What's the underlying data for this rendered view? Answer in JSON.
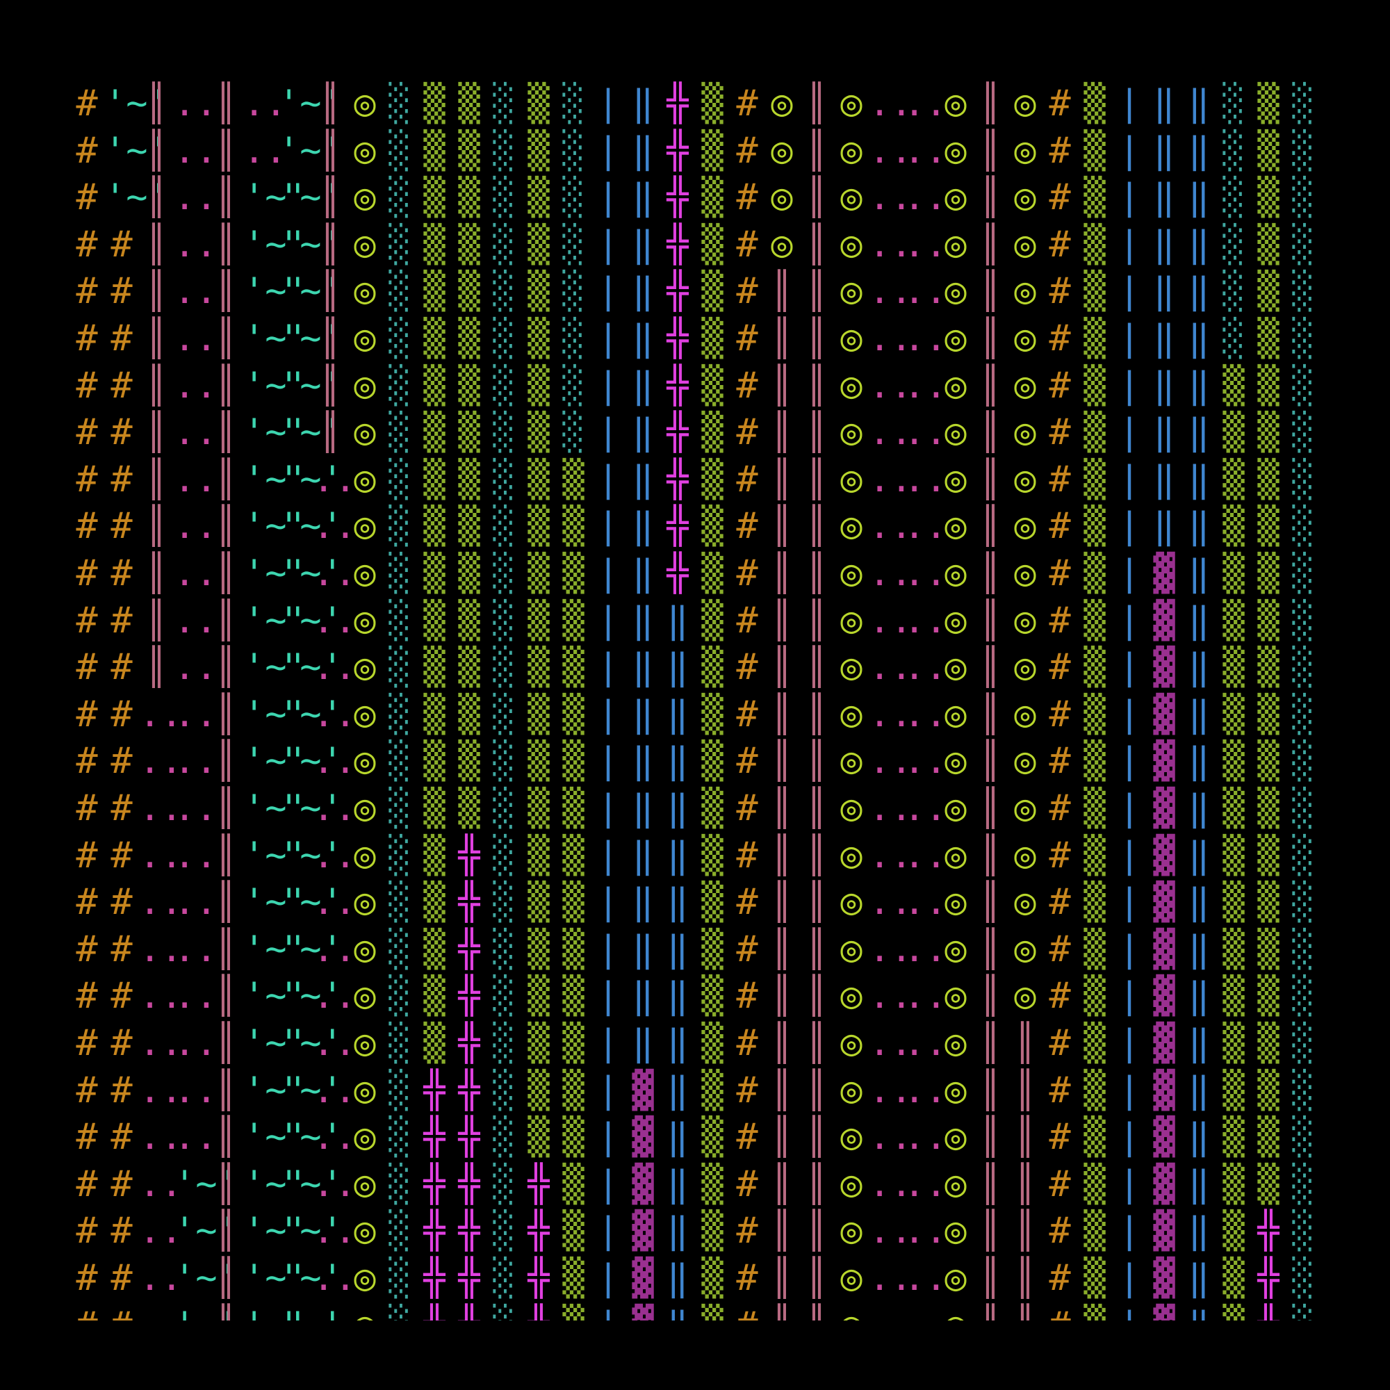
{
  "grid": {
    "palette": {
      "#": "#c8861e",
      "'~'": "#3dd6b0",
      "║": "#b86a82",
      "..": "#c8489e",
      "◎": "#b8d62c",
      "░": "#3fa8a0",
      "▒": "#8aae2a",
      "╬": "#e040e0",
      "▓": "#9a3090",
      "|": "#3f86d0",
      "‖": "#3f86d0"
    },
    "rows": [
      [
        "#",
        "'~'",
        "║",
        "..",
        "║",
        "..",
        "'~'",
        "║",
        "◎",
        "░",
        "▒",
        "▒",
        "░",
        "▒",
        "░",
        "|",
        "‖",
        "╬",
        "▒",
        "#",
        "◎",
        "║",
        "◎",
        "..",
        "..",
        "◎",
        "║",
        "◎",
        "#",
        "▒",
        "|",
        "‖",
        "‖",
        "░",
        "▒",
        "░"
      ],
      [
        "#",
        "'~'",
        "║",
        "..",
        "║",
        "..",
        "'~'",
        "║",
        "◎",
        "░",
        "▒",
        "▒",
        "░",
        "▒",
        "░",
        "|",
        "‖",
        "╬",
        "▒",
        "#",
        "◎",
        "║",
        "◎",
        "..",
        "..",
        "◎",
        "║",
        "◎",
        "#",
        "▒",
        "|",
        "‖",
        "‖",
        "░",
        "▒",
        "░"
      ],
      [
        "#",
        "'~'",
        "║",
        "..",
        "║",
        "'~'",
        "'~'",
        "║",
        "◎",
        "░",
        "▒",
        "▒",
        "░",
        "▒",
        "░",
        "|",
        "‖",
        "╬",
        "▒",
        "#",
        "◎",
        "║",
        "◎",
        "..",
        "..",
        "◎",
        "║",
        "◎",
        "#",
        "▒",
        "|",
        "‖",
        "‖",
        "░",
        "▒",
        "░"
      ],
      [
        "#",
        "#",
        "║",
        "..",
        "║",
        "'~'",
        "'~'",
        "║",
        "◎",
        "░",
        "▒",
        "▒",
        "░",
        "▒",
        "░",
        "|",
        "‖",
        "╬",
        "▒",
        "#",
        "◎",
        "║",
        "◎",
        "..",
        "..",
        "◎",
        "║",
        "◎",
        "#",
        "▒",
        "|",
        "‖",
        "‖",
        "░",
        "▒",
        "░"
      ],
      [
        "#",
        "#",
        "║",
        "..",
        "║",
        "'~'",
        "'~'",
        "║",
        "◎",
        "░",
        "▒",
        "▒",
        "░",
        "▒",
        "░",
        "|",
        "‖",
        "╬",
        "▒",
        "#",
        "║",
        "║",
        "◎",
        "..",
        "..",
        "◎",
        "║",
        "◎",
        "#",
        "▒",
        "|",
        "‖",
        "‖",
        "░",
        "▒",
        "░"
      ],
      [
        "#",
        "#",
        "║",
        "..",
        "║",
        "'~'",
        "'~'",
        "║",
        "◎",
        "░",
        "▒",
        "▒",
        "░",
        "▒",
        "░",
        "|",
        "‖",
        "╬",
        "▒",
        "#",
        "║",
        "║",
        "◎",
        "..",
        "..",
        "◎",
        "║",
        "◎",
        "#",
        "▒",
        "|",
        "‖",
        "‖",
        "░",
        "▒",
        "░"
      ],
      [
        "#",
        "#",
        "║",
        "..",
        "║",
        "'~'",
        "'~'",
        "║",
        "◎",
        "░",
        "▒",
        "▒",
        "░",
        "▒",
        "░",
        "|",
        "‖",
        "╬",
        "▒",
        "#",
        "║",
        "║",
        "◎",
        "..",
        "..",
        "◎",
        "║",
        "◎",
        "#",
        "▒",
        "|",
        "‖",
        "‖",
        "▒",
        "▒",
        "░"
      ],
      [
        "#",
        "#",
        "║",
        "..",
        "║",
        "'~'",
        "'~'",
        "║",
        "◎",
        "░",
        "▒",
        "▒",
        "░",
        "▒",
        "░",
        "|",
        "‖",
        "╬",
        "▒",
        "#",
        "║",
        "║",
        "◎",
        "..",
        "..",
        "◎",
        "║",
        "◎",
        "#",
        "▒",
        "|",
        "‖",
        "‖",
        "▒",
        "▒",
        "░"
      ],
      [
        "#",
        "#",
        "║",
        "..",
        "║",
        "'~'",
        "'~'",
        "..",
        "◎",
        "░",
        "▒",
        "▒",
        "░",
        "▒",
        "▒",
        "|",
        "‖",
        "╬",
        "▒",
        "#",
        "║",
        "║",
        "◎",
        "..",
        "..",
        "◎",
        "║",
        "◎",
        "#",
        "▒",
        "|",
        "‖",
        "‖",
        "▒",
        "▒",
        "░"
      ],
      [
        "#",
        "#",
        "║",
        "..",
        "║",
        "'~'",
        "'~'",
        "..",
        "◎",
        "░",
        "▒",
        "▒",
        "░",
        "▒",
        "▒",
        "|",
        "‖",
        "╬",
        "▒",
        "#",
        "║",
        "║",
        "◎",
        "..",
        "..",
        "◎",
        "║",
        "◎",
        "#",
        "▒",
        "|",
        "‖",
        "‖",
        "▒",
        "▒",
        "░"
      ],
      [
        "#",
        "#",
        "║",
        "..",
        "║",
        "'~'",
        "'~'",
        "..",
        "◎",
        "░",
        "▒",
        "▒",
        "░",
        "▒",
        "▒",
        "|",
        "‖",
        "╬",
        "▒",
        "#",
        "║",
        "║",
        "◎",
        "..",
        "..",
        "◎",
        "║",
        "◎",
        "#",
        "▒",
        "|",
        "▓",
        "‖",
        "▒",
        "▒",
        "░"
      ],
      [
        "#",
        "#",
        "║",
        "..",
        "║",
        "'~'",
        "'~'",
        "..",
        "◎",
        "░",
        "▒",
        "▒",
        "░",
        "▒",
        "▒",
        "|",
        "‖",
        "‖",
        "▒",
        "#",
        "║",
        "║",
        "◎",
        "..",
        "..",
        "◎",
        "║",
        "◎",
        "#",
        "▒",
        "|",
        "▓",
        "‖",
        "▒",
        "▒",
        "░"
      ],
      [
        "#",
        "#",
        "║",
        "..",
        "║",
        "'~'",
        "'~'",
        "..",
        "◎",
        "░",
        "▒",
        "▒",
        "░",
        "▒",
        "▒",
        "|",
        "‖",
        "‖",
        "▒",
        "#",
        "║",
        "║",
        "◎",
        "..",
        "..",
        "◎",
        "║",
        "◎",
        "#",
        "▒",
        "|",
        "▓",
        "‖",
        "▒",
        "▒",
        "░"
      ],
      [
        "#",
        "#",
        "..",
        "..",
        "║",
        "'~'",
        "'~'",
        "..",
        "◎",
        "░",
        "▒",
        "▒",
        "░",
        "▒",
        "▒",
        "|",
        "‖",
        "‖",
        "▒",
        "#",
        "║",
        "║",
        "◎",
        "..",
        "..",
        "◎",
        "║",
        "◎",
        "#",
        "▒",
        "|",
        "▓",
        "‖",
        "▒",
        "▒",
        "░"
      ],
      [
        "#",
        "#",
        "..",
        "..",
        "║",
        "'~'",
        "'~'",
        "..",
        "◎",
        "░",
        "▒",
        "▒",
        "░",
        "▒",
        "▒",
        "|",
        "‖",
        "‖",
        "▒",
        "#",
        "║",
        "║",
        "◎",
        "..",
        "..",
        "◎",
        "║",
        "◎",
        "#",
        "▒",
        "|",
        "▓",
        "‖",
        "▒",
        "▒",
        "░"
      ],
      [
        "#",
        "#",
        "..",
        "..",
        "║",
        "'~'",
        "'~'",
        "..",
        "◎",
        "░",
        "▒",
        "▒",
        "░",
        "▒",
        "▒",
        "|",
        "‖",
        "‖",
        "▒",
        "#",
        "║",
        "║",
        "◎",
        "..",
        "..",
        "◎",
        "║",
        "◎",
        "#",
        "▒",
        "|",
        "▓",
        "‖",
        "▒",
        "▒",
        "░"
      ],
      [
        "#",
        "#",
        "..",
        "..",
        "║",
        "'~'",
        "'~'",
        "..",
        "◎",
        "░",
        "▒",
        "╬",
        "░",
        "▒",
        "▒",
        "|",
        "‖",
        "‖",
        "▒",
        "#",
        "║",
        "║",
        "◎",
        "..",
        "..",
        "◎",
        "║",
        "◎",
        "#",
        "▒",
        "|",
        "▓",
        "‖",
        "▒",
        "▒",
        "░"
      ],
      [
        "#",
        "#",
        "..",
        "..",
        "║",
        "'~'",
        "'~'",
        "..",
        "◎",
        "░",
        "▒",
        "╬",
        "░",
        "▒",
        "▒",
        "|",
        "‖",
        "‖",
        "▒",
        "#",
        "║",
        "║",
        "◎",
        "..",
        "..",
        "◎",
        "║",
        "◎",
        "#",
        "▒",
        "|",
        "▓",
        "‖",
        "▒",
        "▒",
        "░"
      ],
      [
        "#",
        "#",
        "..",
        "..",
        "║",
        "'~'",
        "'~'",
        "..",
        "◎",
        "░",
        "▒",
        "╬",
        "░",
        "▒",
        "▒",
        "|",
        "‖",
        "‖",
        "▒",
        "#",
        "║",
        "║",
        "◎",
        "..",
        "..",
        "◎",
        "║",
        "◎",
        "#",
        "▒",
        "|",
        "▓",
        "‖",
        "▒",
        "▒",
        "░"
      ],
      [
        "#",
        "#",
        "..",
        "..",
        "║",
        "'~'",
        "'~'",
        "..",
        "◎",
        "░",
        "▒",
        "╬",
        "░",
        "▒",
        "▒",
        "|",
        "‖",
        "‖",
        "▒",
        "#",
        "║",
        "║",
        "◎",
        "..",
        "..",
        "◎",
        "║",
        "◎",
        "#",
        "▒",
        "|",
        "▓",
        "‖",
        "▒",
        "▒",
        "░"
      ],
      [
        "#",
        "#",
        "..",
        "..",
        "║",
        "'~'",
        "'~'",
        "..",
        "◎",
        "░",
        "▒",
        "╬",
        "░",
        "▒",
        "▒",
        "|",
        "‖",
        "‖",
        "▒",
        "#",
        "║",
        "║",
        "◎",
        "..",
        "..",
        "◎",
        "║",
        "║",
        "#",
        "▒",
        "|",
        "▓",
        "‖",
        "▒",
        "▒",
        "░"
      ],
      [
        "#",
        "#",
        "..",
        "..",
        "║",
        "'~'",
        "'~'",
        "..",
        "◎",
        "░",
        "╬",
        "╬",
        "░",
        "▒",
        "▒",
        "|",
        "▓",
        "‖",
        "▒",
        "#",
        "║",
        "║",
        "◎",
        "..",
        "..",
        "◎",
        "║",
        "║",
        "#",
        "▒",
        "|",
        "▓",
        "‖",
        "▒",
        "▒",
        "░"
      ],
      [
        "#",
        "#",
        "..",
        "..",
        "║",
        "'~'",
        "'~'",
        "..",
        "◎",
        "░",
        "╬",
        "╬",
        "░",
        "▒",
        "▒",
        "|",
        "▓",
        "‖",
        "▒",
        "#",
        "║",
        "║",
        "◎",
        "..",
        "..",
        "◎",
        "║",
        "║",
        "#",
        "▒",
        "|",
        "▓",
        "‖",
        "▒",
        "▒",
        "░"
      ],
      [
        "#",
        "#",
        "..",
        "'~'",
        "║",
        "'~'",
        "'~'",
        "..",
        "◎",
        "░",
        "╬",
        "╬",
        "░",
        "╬",
        "▒",
        "|",
        "▓",
        "‖",
        "▒",
        "#",
        "║",
        "║",
        "◎",
        "..",
        "..",
        "◎",
        "║",
        "║",
        "#",
        "▒",
        "|",
        "▓",
        "‖",
        "▒",
        "▒",
        "░"
      ],
      [
        "#",
        "#",
        "..",
        "'~'",
        "║",
        "'~'",
        "'~'",
        "..",
        "◎",
        "░",
        "╬",
        "╬",
        "░",
        "╬",
        "▒",
        "|",
        "▓",
        "‖",
        "▒",
        "#",
        "║",
        "║",
        "◎",
        "..",
        "..",
        "◎",
        "║",
        "║",
        "#",
        "▒",
        "|",
        "▓",
        "‖",
        "▒",
        "╬",
        "░"
      ],
      [
        "#",
        "#",
        "..",
        "'~'",
        "║",
        "'~'",
        "'~'",
        "..",
        "◎",
        "░",
        "╬",
        "╬",
        "░",
        "╬",
        "▒",
        "|",
        "▓",
        "‖",
        "▒",
        "#",
        "║",
        "║",
        "◎",
        "..",
        "..",
        "◎",
        "║",
        "║",
        "#",
        "▒",
        "|",
        "▓",
        "‖",
        "▒",
        "╬",
        "░"
      ],
      [
        "#",
        "#",
        "..",
        "'~'",
        "║",
        "'~'",
        "'~'",
        "..",
        "◎",
        "░",
        "╬",
        "╬",
        "░",
        "╬",
        "▒",
        "|",
        "▓",
        "‖",
        "▒",
        "#",
        "║",
        "║",
        "◎",
        "..",
        "..",
        "◎",
        "║",
        "║",
        "#",
        "▒",
        "|",
        "▓",
        "‖",
        "▒",
        "╬",
        "░"
      ]
    ]
  }
}
